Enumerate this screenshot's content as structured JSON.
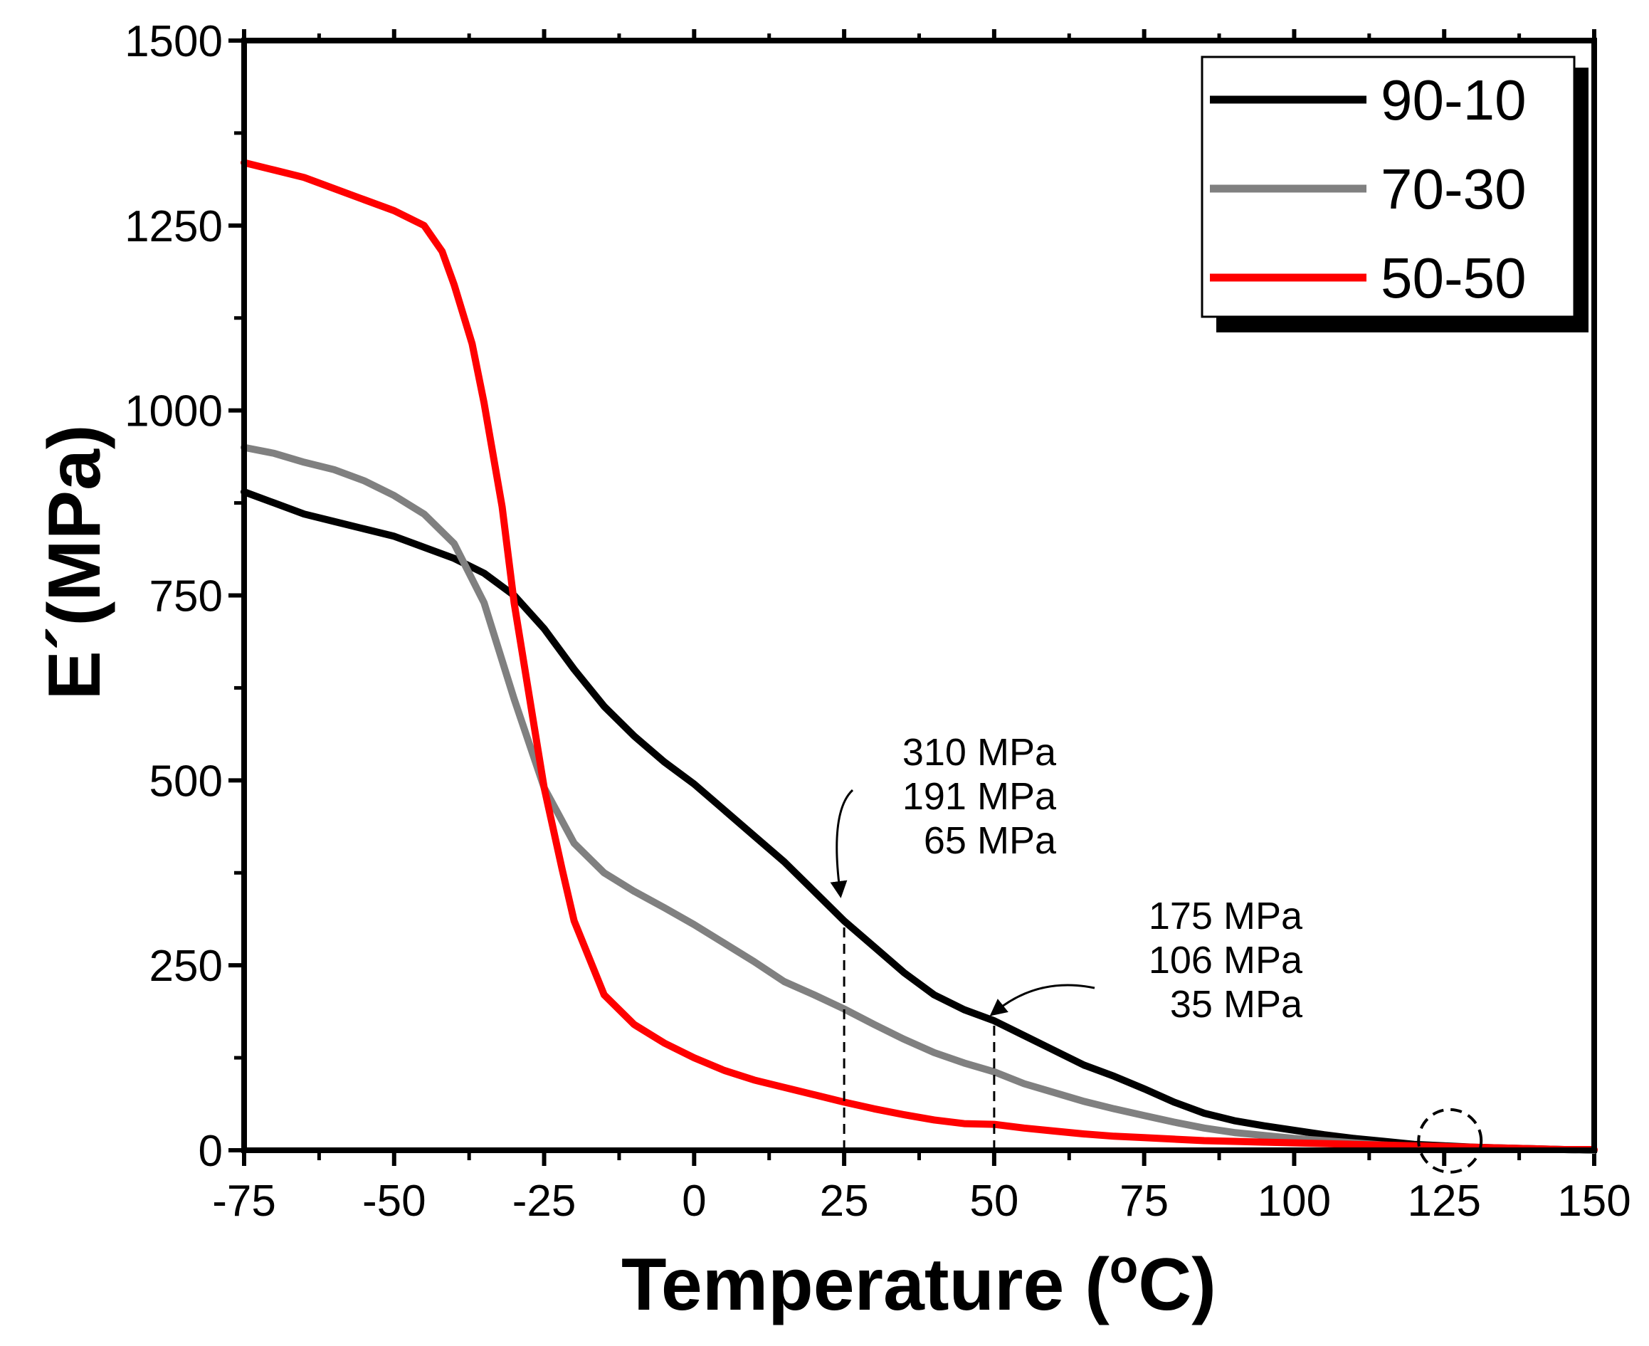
{
  "chart_data": {
    "type": "line",
    "title": "",
    "xlabel": "Temperature (°C)",
    "xlabel_parts": [
      "Temperature (",
      "o",
      "C)"
    ],
    "ylabel": "E´(MPa)",
    "xlim": [
      -75,
      150
    ],
    "ylim": [
      0,
      1500
    ],
    "xticks": [
      -75,
      -50,
      -25,
      0,
      25,
      50,
      75,
      100,
      125,
      150
    ],
    "yticks": [
      0,
      250,
      500,
      750,
      1000,
      1250,
      1500
    ],
    "grid": false,
    "legend_position": "top-right",
    "series": [
      {
        "name": "90-10",
        "color": "#000000",
        "x": [
          -75,
          -70,
          -65,
          -60,
          -55,
          -50,
          -45,
          -40,
          -35,
          -30,
          -25,
          -20,
          -15,
          -10,
          -5,
          0,
          5,
          10,
          15,
          20,
          25,
          30,
          35,
          40,
          45,
          50,
          55,
          60,
          65,
          70,
          75,
          80,
          85,
          90,
          95,
          100,
          105,
          110,
          115,
          120,
          125,
          130,
          135,
          140,
          145,
          150
        ],
        "y": [
          890,
          875,
          860,
          850,
          840,
          830,
          815,
          800,
          780,
          750,
          705,
          650,
          600,
          560,
          525,
          495,
          460,
          425,
          390,
          350,
          310,
          275,
          240,
          210,
          190,
          175,
          155,
          135,
          115,
          100,
          83,
          65,
          50,
          40,
          33,
          27,
          21,
          16,
          12,
          8,
          6,
          4,
          3,
          2,
          1,
          0
        ]
      },
      {
        "name": "70-30",
        "color": "#808080",
        "x": [
          -75,
          -70,
          -65,
          -60,
          -55,
          -50,
          -45,
          -40,
          -35,
          -30,
          -25,
          -20,
          -15,
          -10,
          -5,
          0,
          5,
          10,
          15,
          20,
          25,
          30,
          35,
          40,
          45,
          50,
          55,
          60,
          65,
          70,
          75,
          80,
          85,
          90,
          95,
          100,
          105,
          110,
          115,
          120,
          125,
          130,
          135,
          140,
          145,
          150
        ],
        "y": [
          950,
          942,
          930,
          920,
          905,
          885,
          860,
          820,
          740,
          610,
          490,
          415,
          375,
          350,
          328,
          305,
          280,
          255,
          228,
          210,
          191,
          170,
          150,
          132,
          118,
          106,
          90,
          78,
          66,
          56,
          47,
          38,
          30,
          24,
          20,
          16,
          13,
          10,
          7,
          5,
          4,
          3,
          2,
          1,
          1,
          0
        ]
      },
      {
        "name": "50-50",
        "color": "#ff0000",
        "x": [
          -75,
          -70,
          -65,
          -60,
          -55,
          -50,
          -45,
          -42,
          -40,
          -37,
          -35,
          -32,
          -30,
          -27,
          -25,
          -22,
          -20,
          -15,
          -10,
          -5,
          0,
          5,
          10,
          15,
          20,
          25,
          30,
          35,
          40,
          45,
          50,
          55,
          60,
          65,
          70,
          75,
          80,
          85,
          90,
          95,
          100,
          105,
          110,
          115,
          120,
          125,
          130,
          135,
          140,
          145,
          150
        ],
        "y": [
          1335,
          1325,
          1315,
          1300,
          1285,
          1270,
          1250,
          1215,
          1170,
          1090,
          1010,
          870,
          740,
          590,
          490,
          380,
          310,
          210,
          170,
          145,
          125,
          108,
          95,
          85,
          75,
          65,
          56,
          48,
          41,
          36,
          35,
          30,
          26,
          22,
          19,
          17,
          15,
          13,
          12,
          11,
          10,
          9,
          8,
          7,
          6,
          5,
          4,
          3,
          2,
          1,
          1
        ]
      }
    ],
    "reference_lines": [
      {
        "x": 25,
        "y": 310
      },
      {
        "x": 50,
        "y": 175
      }
    ],
    "annotations": [
      {
        "lines": [
          "310 MPa",
          "191 MPa",
          "65 MPa"
        ],
        "x": 25
      },
      {
        "lines": [
          "175 MPa",
          "106 MPa",
          "35 MPa"
        ],
        "x": 50
      }
    ],
    "highlight_marker": {
      "x": 125,
      "y": 5,
      "shape": "dashed-circle"
    }
  }
}
